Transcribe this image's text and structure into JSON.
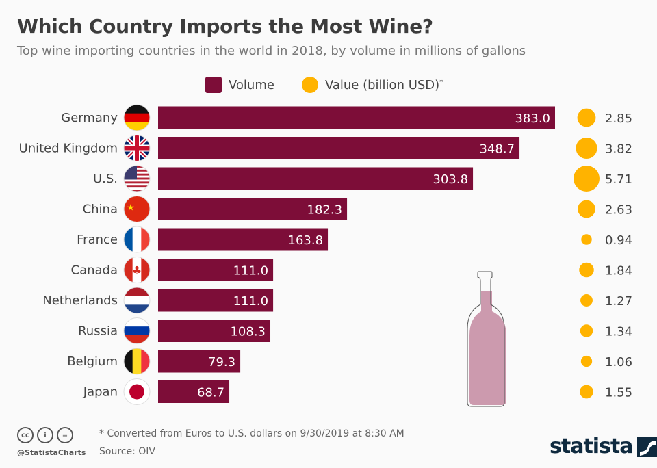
{
  "chart_data": {
    "type": "bar",
    "title": "Which Country Imports the Most Wine?",
    "subtitle": "Top wine importing countries in the world in 2018, by volume in millions of gallons",
    "categories": [
      "Germany",
      "United Kingdom",
      "U.S.",
      "China",
      "France",
      "Canada",
      "Netherlands",
      "Russia",
      "Belgium",
      "Japan"
    ],
    "series": [
      {
        "name": "Volume",
        "values": [
          383.0,
          348.7,
          303.8,
          182.3,
          163.8,
          111.0,
          111.0,
          108.3,
          79.3,
          68.7
        ],
        "labels": [
          "383.0",
          "348.7",
          "303.8",
          "182.3",
          "163.8",
          "111.0",
          "111.0",
          "108.3",
          "79.3",
          "68.7"
        ]
      },
      {
        "name": "Value (billion USD)",
        "values": [
          2.85,
          3.82,
          5.71,
          2.63,
          0.94,
          1.84,
          1.27,
          1.34,
          1.06,
          1.55
        ],
        "labels": [
          "2.85",
          "3.82",
          "5.71",
          "2.63",
          "0.94",
          "1.84",
          "1.27",
          "1.34",
          "1.06",
          "1.55"
        ]
      }
    ],
    "legend_placement": "top",
    "grid": false,
    "colors": {
      "volume": "#7d0d38",
      "value": "#ffb300"
    }
  },
  "legend": {
    "volume": "Volume",
    "value": "Value (billion USD)",
    "value_mark": "*"
  },
  "footer": {
    "note": "* Converted from Euros to U.S. dollars on 9/30/2019 at 8:30 AM",
    "source": "Source: OIV",
    "handle": "@StatistaCharts",
    "logo": "statista"
  }
}
